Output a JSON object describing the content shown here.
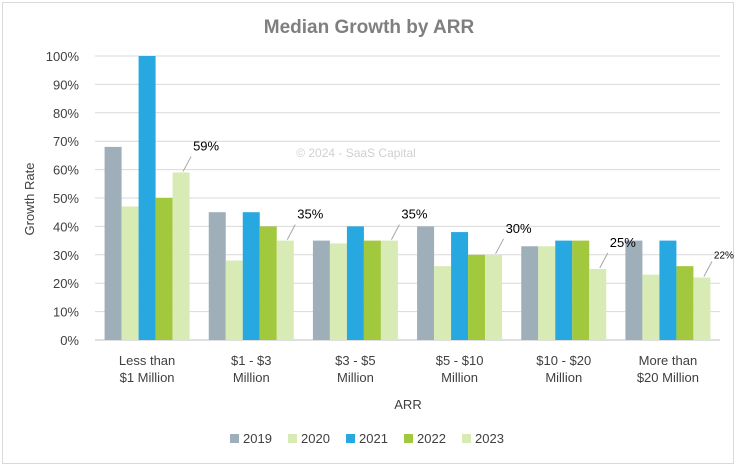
{
  "chart_data": {
    "type": "bar",
    "title": "Median Growth by ARR",
    "xlabel": "ARR",
    "ylabel": "Growth Rate",
    "watermark": "© 2024 - SaaS Capital",
    "ylim": [
      0,
      100
    ],
    "y_ticks": [
      "0%",
      "10%",
      "20%",
      "30%",
      "40%",
      "50%",
      "60%",
      "70%",
      "80%",
      "90%",
      "100%"
    ],
    "categories": [
      [
        "Less than",
        "$1 Million"
      ],
      [
        "$1 - $3",
        "Million"
      ],
      [
        "$3 - $5",
        "Million"
      ],
      [
        "$5 - $10",
        "Million"
      ],
      [
        "$10 - $20",
        "Million"
      ],
      [
        "More than",
        "$20 Million"
      ]
    ],
    "series": [
      {
        "name": "2019",
        "color": "#9eafba",
        "values": [
          68,
          45,
          35,
          40,
          33,
          35
        ]
      },
      {
        "name": "2020",
        "color": "#d9ebb4",
        "values": [
          47,
          28,
          34,
          26,
          33,
          23
        ]
      },
      {
        "name": "2021",
        "color": "#27a8e0",
        "values": [
          100,
          45,
          40,
          38,
          35,
          35
        ]
      },
      {
        "name": "2022",
        "color": "#a2c83e",
        "values": [
          50,
          40,
          35,
          30,
          35,
          26
        ]
      },
      {
        "name": "2023",
        "color": "#d9ebb4",
        "values": [
          59,
          35,
          35,
          30,
          25,
          22
        ]
      }
    ],
    "data_labels": [
      "59%",
      "35%",
      "35%",
      "30%",
      "25%",
      "22%"
    ],
    "grid": true,
    "legend": "bottom"
  }
}
